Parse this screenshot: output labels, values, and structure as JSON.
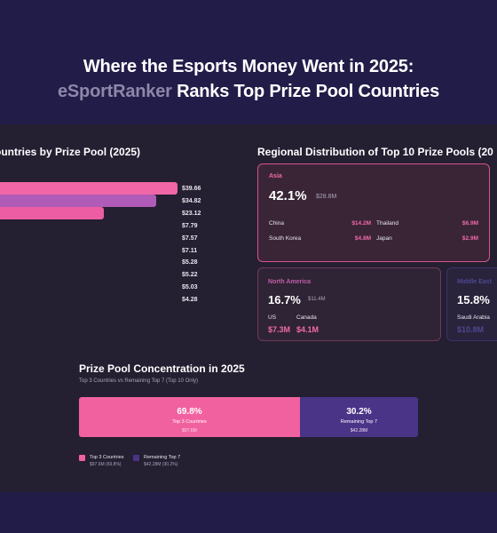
{
  "header": {
    "title_line1": "Where the Esports Money Went in 2025:",
    "brand": "eSportRanker",
    "title_line2_rest": " Ranks Top Prize Pool Countries"
  },
  "bar_section": {
    "title": "ountries by Prize Pool (2025)"
  },
  "chart_data": {
    "type": "bar",
    "orientation": "horizontal",
    "title": "ountries by Prize Pool (2025)",
    "values": [
      39.66,
      34.82,
      23.12,
      7.79,
      7.57,
      7.11,
      5.28,
      5.22,
      5.03,
      4.28
    ],
    "labels": [
      "$39.66",
      "$34.82",
      "$23.12",
      "$7.79",
      "$7.57",
      "$7.11",
      "$5.28",
      "$5.22",
      "$5.03",
      "$4.28"
    ],
    "colors": [
      "#f066a6",
      "#b15bb8",
      "#ec5da3"
    ]
  },
  "regions": {
    "title": "Regional Distribution of Top 10 Prize Pools (20",
    "asia": {
      "name": "Asia",
      "pct": "42.1%",
      "amount": "$28.8M",
      "countries": [
        {
          "name": "China",
          "value": "$14.2M"
        },
        {
          "name": "Thailand",
          "value": "$6.9M"
        },
        {
          "name": "South Korea",
          "value": "$4.8M"
        },
        {
          "name": "Japan",
          "value": "$2.9M"
        }
      ]
    },
    "north_america": {
      "name": "North America",
      "pct": "16.7%",
      "amount": "$11.4M",
      "countries": [
        {
          "name": "US",
          "value": "$7.3M"
        },
        {
          "name": "Canada",
          "value": "$4.1M"
        }
      ]
    },
    "middle_east": {
      "name": "Middle East",
      "pct": "15.8%",
      "countries": [
        {
          "name": "Saudi Arabia",
          "value": "$10.8M"
        }
      ]
    }
  },
  "concentration": {
    "title": "Prize Pool Concentration in 2025",
    "subtitle": "Top 3 Countries vs Remaining Top 7 (Top 10 Only)",
    "top3": {
      "pct": "69.8%",
      "share": 0.698,
      "name": "Top 3 Countries",
      "amount": "$97.6M",
      "legend_sub": "$97.6M (69.8%)",
      "color": "#f2619f"
    },
    "remaining": {
      "pct": "30.2%",
      "share": 0.302,
      "name": "Remaining Top 7",
      "amount": "$42.28M",
      "legend_sub": "$42.28M (30.2%)",
      "color": "#4a3488"
    }
  }
}
